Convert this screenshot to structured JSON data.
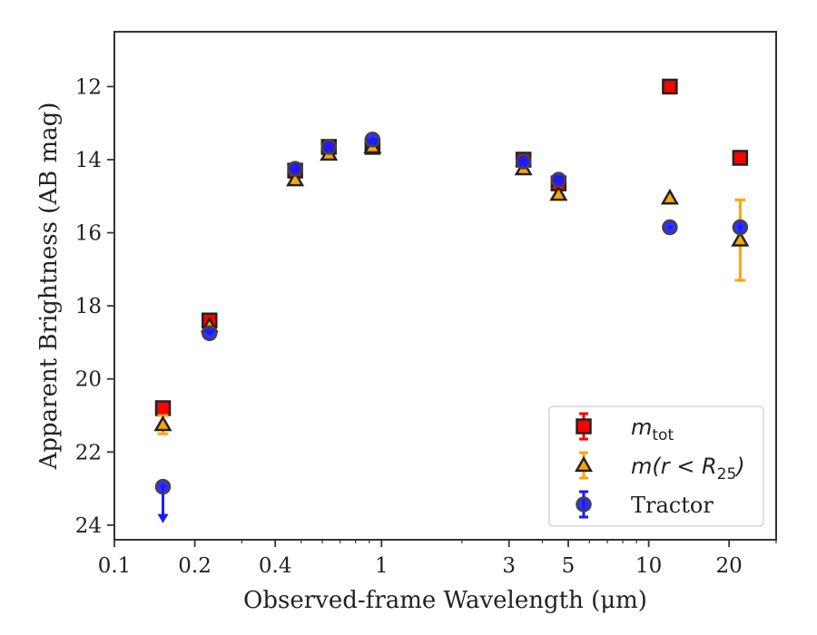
{
  "chart_data": {
    "type": "scatter",
    "xlabel": "Observed-frame Wavelength (μm)",
    "ylabel": "Apparent Brightness (AB mag)",
    "xscale": "log",
    "xlim": [
      0.1,
      30
    ],
    "ylim": [
      24.4,
      10.5
    ],
    "y_inverted": true,
    "xticks": [
      0.1,
      0.2,
      0.4,
      1,
      3,
      5,
      10,
      20
    ],
    "xtick_labels": [
      "0.1",
      "0.2",
      "0.4",
      "1",
      "3",
      "5",
      "10",
      "20"
    ],
    "yticks": [
      12,
      14,
      16,
      18,
      20,
      22,
      24
    ],
    "ytick_labels": [
      "12",
      "14",
      "16",
      "18",
      "20",
      "22",
      "24"
    ],
    "legend_position": "lower-right",
    "series": [
      {
        "name": "m_tot",
        "marker": "square",
        "color": "#ff0000",
        "edge_color": "#222222",
        "x": [
          0.152,
          0.227,
          0.475,
          0.635,
          0.925,
          3.4,
          4.6,
          12.0,
          22.0
        ],
        "y": [
          20.8,
          18.4,
          14.3,
          13.65,
          13.65,
          14.0,
          14.65,
          12.0,
          13.95
        ]
      },
      {
        "name": "m(r < R25)",
        "marker": "triangle",
        "color": "#ffa500",
        "edge_color": "#222222",
        "x": [
          0.152,
          0.227,
          0.475,
          0.635,
          0.925,
          3.4,
          4.6,
          12.0,
          22.0
        ],
        "y": [
          21.25,
          18.55,
          14.55,
          13.85,
          13.65,
          14.25,
          14.95,
          15.05,
          16.2
        ],
        "yerr": [
          0.25,
          0,
          0,
          0,
          0,
          0,
          0,
          0,
          1.1
        ]
      },
      {
        "name": "Tractor",
        "marker": "circle",
        "color": "#1a1aff",
        "edge_color": "#444444",
        "x": [
          0.152,
          0.227,
          0.475,
          0.635,
          0.925,
          3.4,
          4.6,
          12.0,
          22.0
        ],
        "y": [
          22.95,
          18.75,
          14.25,
          13.65,
          13.45,
          14.05,
          14.55,
          15.85,
          15.85
        ],
        "upper_limit": [
          true,
          false,
          false,
          false,
          false,
          false,
          false,
          false,
          false
        ]
      }
    ],
    "legend": [
      {
        "label_main": "m",
        "label_sub": "tot",
        "series": 0
      },
      {
        "label_main": "m(r < R",
        "label_sub": "25",
        "label_tail": ")",
        "series": 1
      },
      {
        "label_main": "Tractor",
        "series": 2
      }
    ]
  }
}
